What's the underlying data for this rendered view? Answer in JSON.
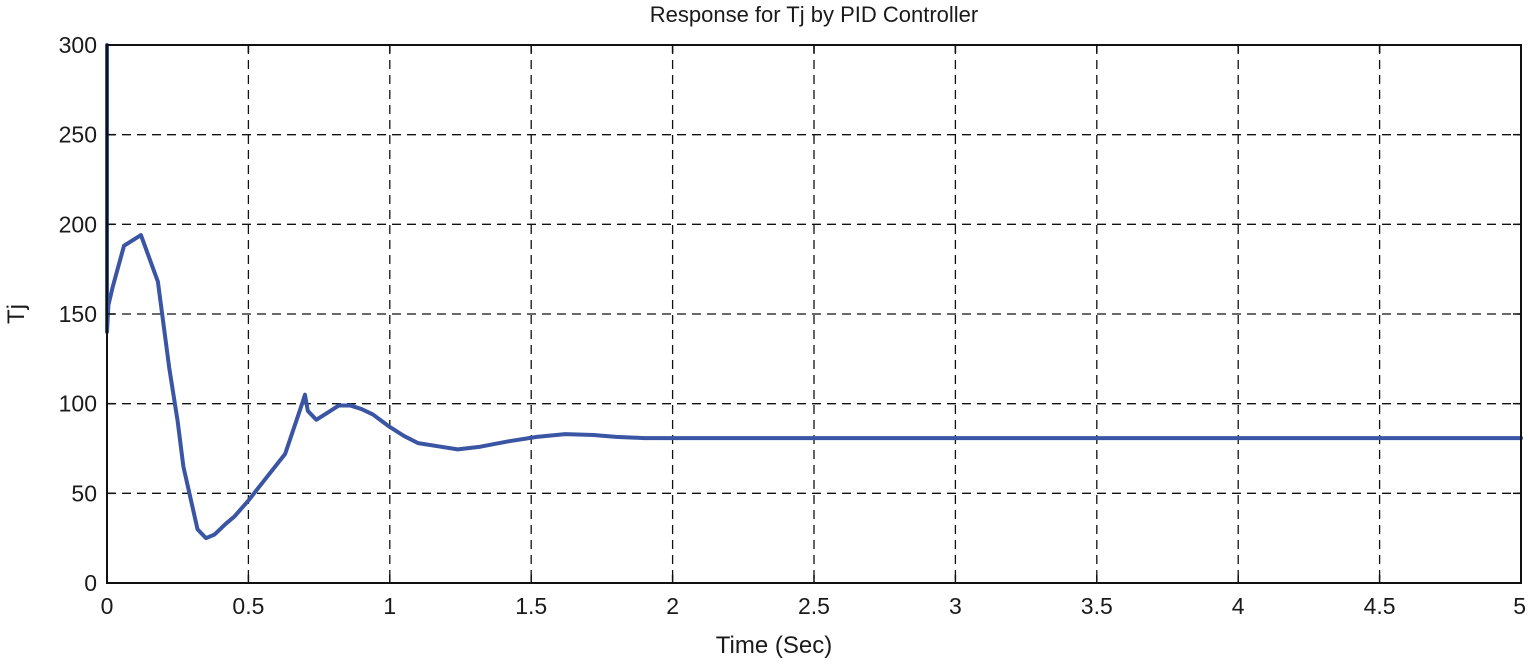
{
  "chart_data": {
    "type": "line",
    "title": "Response for Tj by PID Controller",
    "xlabel": "Time (Sec)",
    "ylabel": "Tj",
    "xlim": [
      0,
      5
    ],
    "ylim": [
      0,
      300
    ],
    "xticks": [
      0,
      0.5,
      1,
      1.5,
      2,
      2.5,
      3,
      3.5,
      4,
      4.5,
      5
    ],
    "xtick_labels": [
      "0",
      "0.5",
      "1",
      "1.5",
      "2",
      "2.5",
      "3",
      "3.5",
      "4",
      "4.5",
      "5"
    ],
    "yticks": [
      0,
      50,
      100,
      150,
      200,
      250,
      300
    ],
    "ytick_labels": [
      "0",
      "50",
      "100",
      "150",
      "200",
      "250",
      "300"
    ],
    "grid": true,
    "series": [
      {
        "color": "#3a55a4",
        "x": [
          0.0,
          0.0,
          0.005,
          0.02,
          0.06,
          0.12,
          0.18,
          0.22,
          0.25,
          0.27,
          0.32,
          0.35,
          0.38,
          0.42,
          0.45,
          0.5,
          0.55,
          0.6,
          0.63,
          0.66,
          0.69,
          0.7,
          0.71,
          0.74,
          0.78,
          0.82,
          0.86,
          0.9,
          0.94,
          1.0,
          1.05,
          1.1,
          1.18,
          1.24,
          1.32,
          1.42,
          1.52,
          1.62,
          1.72,
          1.8,
          1.9,
          2.0,
          2.5,
          3.0,
          3.5,
          4.0,
          4.5,
          5.0
        ],
        "y": [
          300,
          140,
          155,
          165,
          188,
          194,
          168,
          120,
          90,
          65,
          30,
          25,
          27,
          33,
          37,
          46,
          56,
          66,
          72,
          86,
          100,
          105,
          96,
          91,
          95,
          99,
          99,
          97,
          94,
          87,
          82,
          78,
          76,
          74.5,
          76,
          79,
          81.5,
          83,
          82.5,
          81.5,
          80.8,
          80.8,
          80.8,
          80.8,
          80.8,
          80.8,
          80.8,
          80.8
        ]
      }
    ]
  }
}
